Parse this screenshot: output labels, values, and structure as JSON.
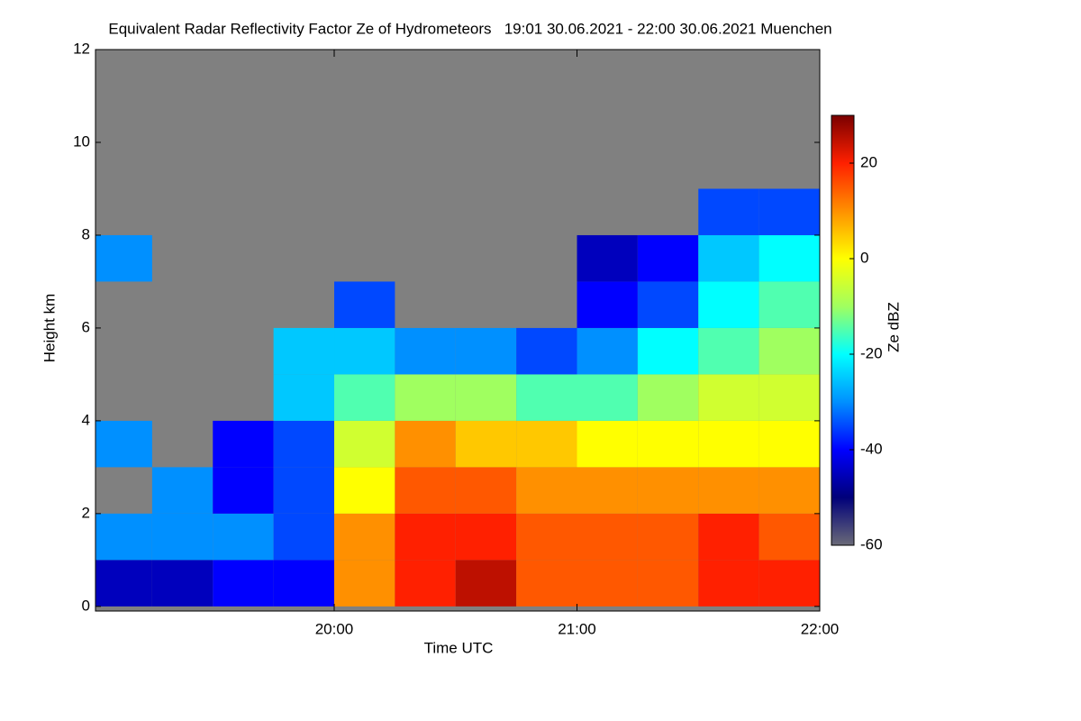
{
  "chart_data": {
    "type": "heatmap",
    "title": "Equivalent Radar Reflectivity Factor Ze of Hydrometeors   19:01 30.06.2021 - 22:00 30.06.2021 Muenchen",
    "x_label": "Time UTC",
    "y_label": "Height km",
    "colorbar_label": "Ze dBZ",
    "x_edges": [
      "19:01",
      "19:15",
      "19:30",
      "19:45",
      "20:00",
      "20:15",
      "20:30",
      "20:45",
      "21:00",
      "21:15",
      "21:30",
      "21:45",
      "22:00"
    ],
    "y_edges": [
      0,
      1,
      2,
      3,
      4,
      5,
      6,
      7,
      8,
      9
    ],
    "values": [
      [
        -45,
        -45,
        -40,
        -40,
        10,
        20,
        25,
        15,
        15,
        15,
        20,
        20
      ],
      [
        -30,
        -30,
        -30,
        -35,
        10,
        20,
        20,
        15,
        15,
        15,
        20,
        15
      ],
      [
        null,
        -30,
        -40,
        -35,
        0,
        15,
        15,
        10,
        10,
        10,
        10,
        10
      ],
      [
        -30,
        null,
        -40,
        -35,
        -5,
        10,
        5,
        5,
        0,
        0,
        0,
        0
      ],
      [
        null,
        null,
        null,
        -25,
        -15,
        -10,
        -10,
        -15,
        -15,
        -10,
        -5,
        -5
      ],
      [
        null,
        null,
        null,
        -25,
        -25,
        -30,
        -30,
        -35,
        -30,
        -20,
        -15,
        -10
      ],
      [
        null,
        null,
        null,
        null,
        -35,
        null,
        null,
        null,
        -40,
        -35,
        -20,
        -15
      ],
      [
        -30,
        null,
        null,
        null,
        null,
        null,
        null,
        null,
        -45,
        -40,
        -25,
        -20
      ],
      [
        null,
        null,
        null,
        null,
        null,
        null,
        null,
        null,
        null,
        null,
        -35,
        -35
      ]
    ],
    "xlim": [
      "19:01",
      "22:00"
    ],
    "xticks": [
      "20:00",
      "21:00",
      "22:00"
    ],
    "ylim": [
      -0.1,
      12
    ],
    "yticks": [
      0,
      2,
      4,
      6,
      8,
      10,
      12
    ],
    "zlim": [
      -60,
      30
    ],
    "colorbar_ticks": [
      -60,
      -40,
      -20,
      0,
      20
    ],
    "colormap": [
      "#6a6a78",
      "#00007a",
      "#0000ff",
      "#0090ff",
      "#00ffff",
      "#a0ff60",
      "#ffff00",
      "#ff9000",
      "#ff2000",
      "#7a0000"
    ],
    "background": "#808080"
  }
}
